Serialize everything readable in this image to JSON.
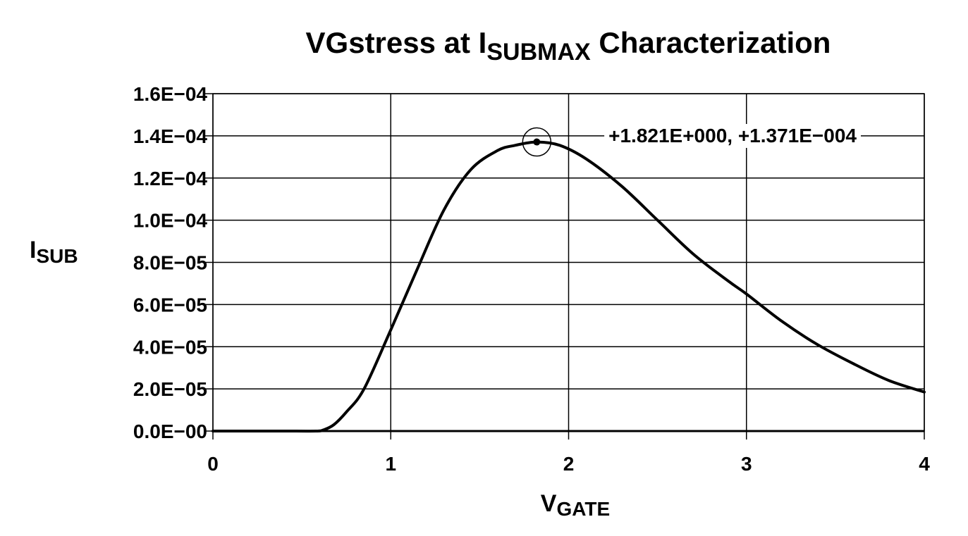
{
  "chart_data": {
    "type": "line",
    "title": {
      "main": "VGstress at I",
      "subscript": "SUBMAX",
      "suffix": " Characterization"
    },
    "xlabel": {
      "main": "V",
      "subscript": "GATE"
    },
    "ylabel": {
      "main": "I",
      "subscript": "SUB"
    },
    "xlim": [
      0,
      4
    ],
    "ylim": [
      0,
      0.00016
    ],
    "x_ticks": [
      {
        "value": 0,
        "label": "0"
      },
      {
        "value": 1,
        "label": "1"
      },
      {
        "value": 2,
        "label": "2"
      },
      {
        "value": 3,
        "label": "3"
      },
      {
        "value": 4,
        "label": "4"
      }
    ],
    "y_ticks": [
      {
        "value": 0,
        "label": "0.0E−00"
      },
      {
        "value": 2e-05,
        "label": "2.0E−05"
      },
      {
        "value": 4e-05,
        "label": "4.0E−05"
      },
      {
        "value": 6e-05,
        "label": "6.0E−05"
      },
      {
        "value": 8e-05,
        "label": "8.0E−05"
      },
      {
        "value": 0.0001,
        "label": "1.0E−04"
      },
      {
        "value": 0.00012,
        "label": "1.2E−04"
      },
      {
        "value": 0.00014,
        "label": "1.4E−04"
      },
      {
        "value": 0.00016,
        "label": "1.6E−04"
      }
    ],
    "grid": true,
    "series": [
      {
        "x": [
          0,
          0.2,
          0.4,
          0.58,
          0.62,
          0.68,
          0.75,
          0.85,
          1.0,
          1.15,
          1.3,
          1.45,
          1.6,
          1.7,
          1.821,
          1.95,
          2.1,
          2.3,
          2.5,
          2.7,
          2.9,
          3.0,
          3.2,
          3.4,
          3.6,
          3.8,
          4.0
        ],
        "y": [
          0,
          0,
          0,
          0,
          5e-07,
          3e-06,
          9e-06,
          2e-05,
          4.8e-05,
          7.7e-05,
          0.000105,
          0.000124,
          0.000133,
          0.0001355,
          0.0001371,
          0.0001355,
          0.000129,
          0.000116,
          0.0001,
          8.4e-05,
          7.1e-05,
          6.5e-05,
          5.2e-05,
          4.1e-05,
          3.2e-05,
          2.4e-05,
          1.85e-05
        ]
      }
    ],
    "marker": {
      "x": 1.821,
      "y": 0.0001371,
      "label": "+1.821E+000, +1.371E−004"
    }
  }
}
